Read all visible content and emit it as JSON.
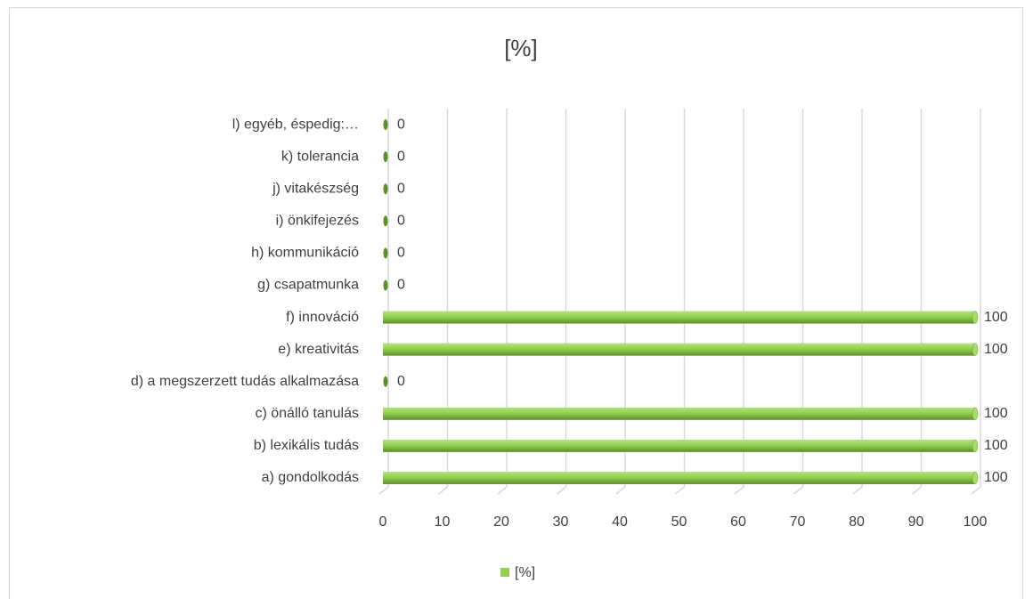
{
  "chart_data": {
    "type": "bar",
    "orientation": "horizontal",
    "title": "[%]",
    "categories": [
      "a) gondolkodás",
      "b) lexikális tudás",
      "c) önálló tanulás",
      "d) a megszerzett tudás alkalmazása",
      "e) kreativitás",
      "f) innováció",
      "g) csapatmunka",
      "h) kommunikáció",
      "i) önkifejezés",
      "j) vitakészség",
      "k) tolerancia",
      "l) egyéb, éspedig:…"
    ],
    "series": [
      {
        "name": "[%]",
        "color": "#92d050",
        "values": [
          100,
          100,
          100,
          0,
          100,
          100,
          0,
          0,
          0,
          0,
          0,
          0
        ]
      }
    ],
    "xlim": [
      0,
      100
    ],
    "xticks": [
      0,
      10,
      20,
      30,
      40,
      50,
      60,
      70,
      80,
      90,
      100
    ],
    "grid": true,
    "legend": "bottom"
  }
}
